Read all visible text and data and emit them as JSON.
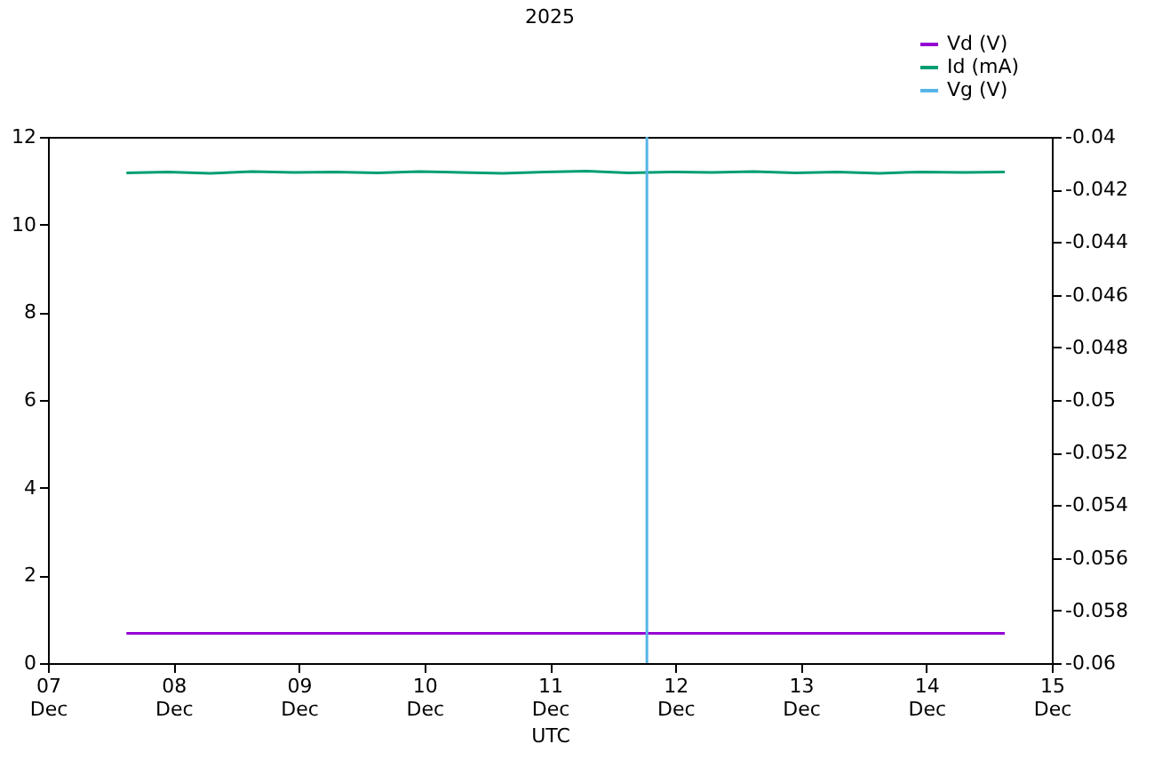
{
  "chart_data": {
    "type": "line",
    "title": "2025",
    "xlabel": "UTC",
    "legend": "top right",
    "grid": false,
    "xlim": [
      "2025-12-07",
      "2025-12-15"
    ],
    "xticks": [
      {
        "value": "2025-12-07",
        "label": "07\nDec"
      },
      {
        "value": "2025-12-08",
        "label": "08\nDec"
      },
      {
        "value": "2025-12-09",
        "label": "09\nDec"
      },
      {
        "value": "2025-12-10",
        "label": "10\nDec"
      },
      {
        "value": "2025-12-11",
        "label": "11\nDec"
      },
      {
        "value": "2025-12-12",
        "label": "12\nDec"
      },
      {
        "value": "2025-12-13",
        "label": "13\nDec"
      },
      {
        "value": "2025-12-14",
        "label": "14\nDec"
      },
      {
        "value": "2025-12-15",
        "label": "15\nDec"
      }
    ],
    "ylim": [
      0,
      12
    ],
    "yticks": [
      0,
      2,
      4,
      6,
      8,
      10,
      12
    ],
    "y2lim": [
      -0.06,
      -0.04
    ],
    "y2ticks": [
      -0.06,
      -0.058,
      -0.056,
      -0.054,
      -0.052,
      -0.05,
      -0.048,
      -0.046,
      -0.044,
      -0.042,
      -0.04
    ],
    "series": [
      {
        "name": "Vd (V)",
        "color": "#9400d3",
        "x": [
          "2025-12-07T15:00",
          "2025-12-14T15:00"
        ],
        "values": [
          0.68,
          0.68
        ]
      },
      {
        "name": "Id (mA)",
        "color": "#009e73",
        "x": [
          "2025-12-07T15:00",
          "2025-12-07T23:00",
          "2025-12-08T07:00",
          "2025-12-08T15:00",
          "2025-12-08T23:00",
          "2025-12-09T07:00",
          "2025-12-09T15:00",
          "2025-12-09T23:00",
          "2025-12-10T07:00",
          "2025-12-10T15:00",
          "2025-12-10T23:00",
          "2025-12-11T07:00",
          "2025-12-11T15:00",
          "2025-12-11T23:00",
          "2025-12-12T07:00",
          "2025-12-12T15:00",
          "2025-12-12T23:00",
          "2025-12-13T07:00",
          "2025-12-13T15:00",
          "2025-12-13T23:00",
          "2025-12-14T07:00",
          "2025-12-14T15:00"
        ],
        "values": [
          11.18,
          11.2,
          11.17,
          11.21,
          11.19,
          11.2,
          11.18,
          11.21,
          11.19,
          11.17,
          11.2,
          11.22,
          11.18,
          11.2,
          11.19,
          11.21,
          11.18,
          11.2,
          11.17,
          11.2,
          11.19,
          11.2
        ]
      },
      {
        "name": "Vg (V)",
        "color": "#56b4e9",
        "axis": "y2",
        "x": [
          "2025-12-11T18:33",
          "2025-12-11T18:33"
        ],
        "values": [
          -0.06,
          -0.04
        ]
      }
    ]
  }
}
